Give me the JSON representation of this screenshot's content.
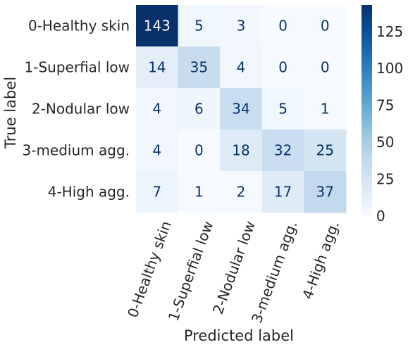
{
  "chart_data": {
    "type": "heatmap",
    "xlabel": "Predicted label",
    "ylabel": "True label",
    "x_categories": [
      "0-Healthy skin",
      "1-Superfial low",
      "2-Nodular low",
      "3-medium agg.",
      "4-High agg."
    ],
    "y_categories": [
      "0-Healthy skin",
      "1-Superfial low",
      "2-Nodular low",
      "3-medium agg.",
      "4-High agg."
    ],
    "values": [
      [
        143,
        5,
        3,
        0,
        0
      ],
      [
        14,
        35,
        4,
        0,
        0
      ],
      [
        4,
        6,
        34,
        5,
        1
      ],
      [
        4,
        0,
        18,
        32,
        25
      ],
      [
        7,
        1,
        2,
        17,
        37
      ]
    ],
    "colorbar": {
      "min": 0,
      "max": 143,
      "ticks": [
        0,
        25,
        50,
        75,
        100,
        125
      ],
      "colormap": "Blues"
    },
    "colors": {
      "low": "#f7fbff",
      "high": "#08306b",
      "text_dark": "#08306b",
      "text_light": "#ffffff"
    }
  }
}
